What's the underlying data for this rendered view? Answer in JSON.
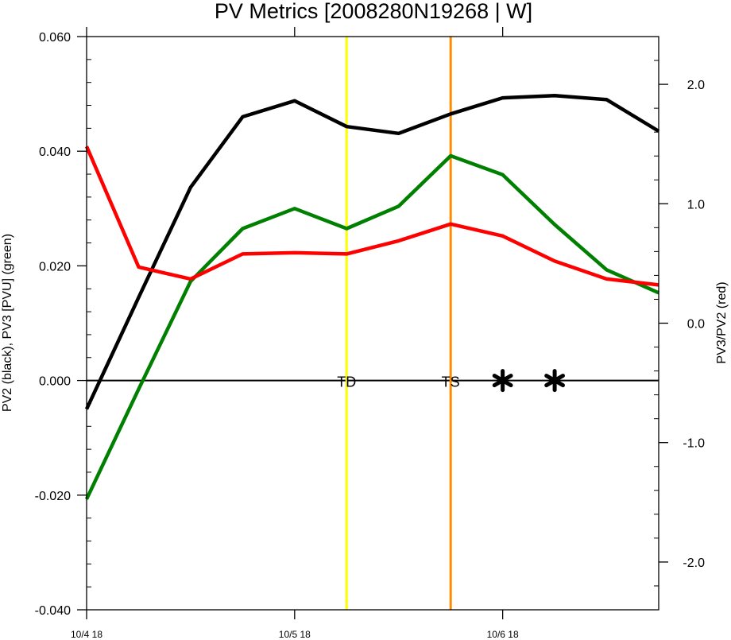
{
  "chart_data": {
    "type": "line",
    "title": "PV Metrics [2008280N19268 | W]",
    "ylabel": "PV2 (black), PV3 [PVU] (green)",
    "y2label": "PV3/PV2 (red)",
    "x_tick_labels": [
      "10/4 18",
      "10/5 18",
      "10/6 18"
    ],
    "y_ticks": [
      "-0.040",
      "-0.020",
      "0.000",
      "0.020",
      "0.040",
      "0.060"
    ],
    "y2_ticks": [
      "-2.0",
      "-1.0",
      "0.0",
      "1.0",
      "2.0"
    ],
    "ylim": [
      -0.04,
      0.06
    ],
    "y2lim": [
      -2.4,
      2.4
    ],
    "x_hours": [
      0,
      6,
      12,
      18,
      24,
      30,
      36,
      42,
      48,
      54,
      60,
      66
    ],
    "series": [
      {
        "name": "PV2",
        "axis": "left",
        "color": "#000000",
        "values": [
          -0.005,
          0.0145,
          0.0337,
          0.046,
          0.0488,
          0.0443,
          0.0431,
          0.0465,
          0.0493,
          0.0497,
          0.049,
          0.0435
        ]
      },
      {
        "name": "PV3",
        "axis": "left",
        "color": "#008000",
        "values": [
          -0.0207,
          -0.0015,
          0.0173,
          0.0265,
          0.03,
          0.0265,
          0.0304,
          0.0392,
          0.0359,
          0.0272,
          0.0193,
          0.0153
        ]
      },
      {
        "name": "PV3/PV2",
        "axis": "right",
        "color": "#ff0000",
        "values": [
          1.48,
          0.47,
          0.37,
          0.58,
          0.59,
          0.58,
          0.69,
          0.83,
          0.73,
          0.52,
          0.37,
          0.32
        ]
      }
    ],
    "vertical_markers": [
      {
        "label": "TD",
        "hour": 30,
        "color": "#ffff00"
      },
      {
        "label": "TS",
        "hour": 42,
        "color": "#ff8c00"
      }
    ],
    "star_markers": [
      {
        "hour": 48,
        "value": 0.0
      },
      {
        "hour": 54,
        "value": 0.0
      }
    ]
  }
}
